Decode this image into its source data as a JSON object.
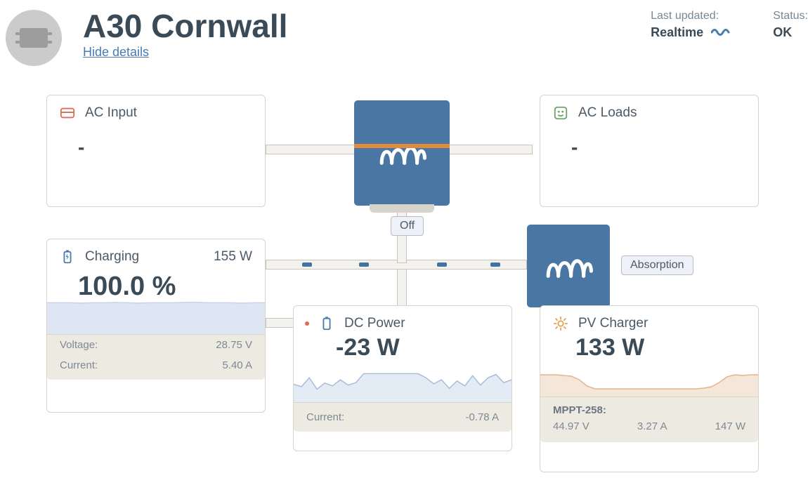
{
  "header": {
    "title": "A30 Cornwall",
    "details_link": "Hide details",
    "updated_label": "Last updated:",
    "updated_value": "Realtime",
    "status_label": "Status:",
    "status_value": "OK"
  },
  "inverter": {
    "state": "Off"
  },
  "mppt_badge": "Absorption",
  "ac_input": {
    "title": "AC Input",
    "value": "-",
    "icon_color": "#e06a5a"
  },
  "ac_loads": {
    "title": "AC Loads",
    "value": "-",
    "icon_color": "#6aa56a"
  },
  "battery": {
    "label": "Charging",
    "power": "155 W",
    "soc": "100.0 %",
    "voltage_label": "Voltage:",
    "voltage": "28.75 V",
    "current_label": "Current:",
    "current": "5.40 A",
    "series_color": "#c7d3e6",
    "series_fill": "#dde6f2",
    "spark": [
      97,
      97,
      97,
      96,
      97,
      97,
      98,
      97,
      96,
      97,
      97,
      97,
      98,
      99,
      97,
      97,
      97,
      96,
      97,
      97
    ]
  },
  "dc": {
    "title": "DC Power",
    "power": "-23 W",
    "current_label": "Current:",
    "current": "-0.78 A",
    "series_color": "#a9bdd7",
    "series_fill": "#e3ebf4",
    "spark": [
      44,
      38,
      60,
      32,
      47,
      40,
      55,
      42,
      48,
      70,
      70,
      70,
      70,
      70,
      70,
      70,
      70,
      60,
      45,
      55,
      34,
      52,
      40,
      65,
      42,
      60,
      68,
      48,
      55
    ]
  },
  "pv": {
    "title": "PV Charger",
    "power": "133 W",
    "mppt_label": "MPPT-258:",
    "voltage": "44.97 V",
    "current": "3.27 A",
    "watts": "147 W",
    "series_color": "#e6b488",
    "series_fill": "#f4e6d8",
    "spark": [
      62,
      62,
      62,
      60,
      58,
      48,
      30,
      22,
      22,
      22,
      22,
      22,
      22,
      22,
      22,
      22,
      22,
      22,
      22,
      22,
      22,
      24,
      28,
      40,
      56,
      62,
      60,
      62,
      62
    ]
  },
  "colors": {
    "card_border": "#d8d4cb",
    "wire_fill": "#f3f2ef",
    "wire_border": "#c9c4b8",
    "inverter": "#4976a2",
    "accent_orange": "#e38b3d",
    "badge_bg": "#eef1f7",
    "badge_border": "#b7bcc5",
    "footer_bg": "#edeae2",
    "text": "#4a5a68",
    "text_dark": "#3b4a57",
    "link": "#4a7bb0"
  }
}
